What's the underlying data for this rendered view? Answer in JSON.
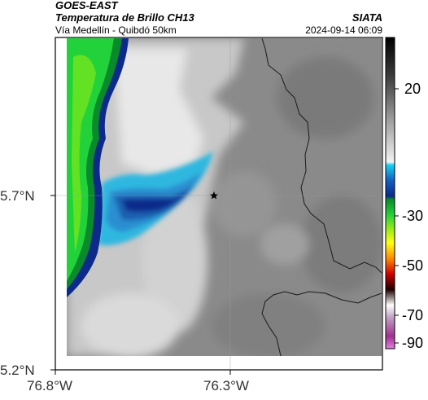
{
  "header": {
    "satellite": "GOES-EAST",
    "product": "Temperatura de Brillo CH13",
    "region": "Vía Medellín - Quibdó 50km",
    "organization": "SIATA",
    "timestamp": "2024-09-14 06:09"
  },
  "axes": {
    "lon_ticks": [
      "76.8°W",
      "76.3°W"
    ],
    "lat_ticks": [
      "5.7°N",
      "5.2°N"
    ],
    "lon_range": [
      -76.8,
      -76.0
    ],
    "lat_range": [
      5.2,
      6.2
    ]
  },
  "colorbar": {
    "tick_labels": [
      "20",
      "-30",
      "-50",
      "-70",
      "-90"
    ],
    "orientation": "vertical",
    "placement": "right"
  },
  "map": {
    "marker": {
      "symbol": "star",
      "lon": -76.32,
      "lat": 5.7
    },
    "colors": {
      "land_gray": "#8a8a8a",
      "warm_cloud": "#cfcfcf",
      "cold_cyan": "#2fb8e0",
      "cold_blue": "#1f5fb0",
      "deep_blue": "#0b2a8a",
      "green": "#22d23a",
      "lime": "#7ee81a",
      "boundary": "#1a1a1a"
    }
  }
}
